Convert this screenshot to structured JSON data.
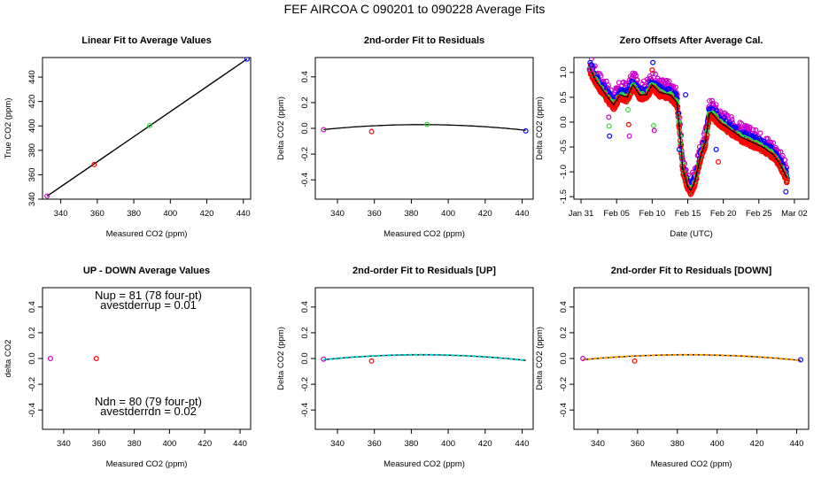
{
  "figure": {
    "title": "FEF   AIRCOA C   090201 to 090228   Average Fits"
  },
  "chart_data": [
    {
      "id": "p1",
      "type": "scatter",
      "title": "Linear Fit to Average Values",
      "xlabel": "Measured CO2 (ppm)",
      "ylabel": "True CO2 (ppm)",
      "xlim": [
        330,
        444
      ],
      "ylim": [
        340,
        456
      ],
      "xticks": [
        {
          "v": 340,
          "label": "340"
        },
        {
          "v": 360,
          "label": "360"
        },
        {
          "v": 380,
          "label": "380"
        },
        {
          "v": 400,
          "label": "400"
        },
        {
          "v": 420,
          "label": "420"
        },
        {
          "v": 440,
          "label": "440"
        }
      ],
      "yticks": [
        {
          "v": 340,
          "label": "340"
        },
        {
          "v": 360,
          "label": "360"
        },
        {
          "v": 380,
          "label": "380"
        },
        {
          "v": 400,
          "label": "400"
        },
        {
          "v": 420,
          "label": "420"
        },
        {
          "v": 440,
          "label": "440"
        }
      ],
      "series": [
        {
          "color": "#cc00cc",
          "points": [
            [
              332.5,
              342.5
            ]
          ]
        },
        {
          "color": "#ff0000",
          "points": [
            [
              358.3,
              368.4
            ]
          ]
        },
        {
          "color": "#33dd33",
          "points": [
            [
              388.7,
              400.3
            ]
          ]
        },
        {
          "color": "#0000ff",
          "points": [
            [
              442.0,
              454.8
            ]
          ]
        }
      ],
      "lines": [
        {
          "color": "#000000",
          "points": [
            [
              332.5,
              342.5
            ],
            [
              442.0,
              454.8
            ]
          ]
        }
      ]
    },
    {
      "id": "p2",
      "type": "scatter",
      "title": "2nd-order Fit to Residuals",
      "xlabel": "Measured CO2 (ppm)",
      "ylabel": "Delta CO2 (ppm)",
      "xlim": [
        328,
        446
      ],
      "ylim": [
        -0.55,
        0.55
      ],
      "xticks": [
        {
          "v": 340,
          "label": "340"
        },
        {
          "v": 360,
          "label": "360"
        },
        {
          "v": 380,
          "label": "380"
        },
        {
          "v": 400,
          "label": "400"
        },
        {
          "v": 420,
          "label": "420"
        },
        {
          "v": 440,
          "label": "440"
        }
      ],
      "yticks": [
        {
          "v": -0.4,
          "label": "-0.4"
        },
        {
          "v": -0.2,
          "label": "-0.2"
        },
        {
          "v": 0.0,
          "label": "0.0"
        },
        {
          "v": 0.2,
          "label": "0.2"
        },
        {
          "v": 0.4,
          "label": "0.4"
        }
      ],
      "series": [
        {
          "color": "#cc00cc",
          "points": [
            [
              332.5,
              -0.01
            ]
          ]
        },
        {
          "color": "#ff0000",
          "points": [
            [
              358.5,
              -0.025
            ]
          ]
        },
        {
          "color": "#33dd33",
          "points": [
            [
              388.5,
              0.03
            ]
          ]
        },
        {
          "color": "#0000ff",
          "points": [
            [
              442.0,
              -0.02
            ]
          ]
        }
      ],
      "curves": [
        {
          "color": "#000000",
          "dashed": false,
          "x": [
            332.5,
            442.0
          ],
          "coef": [
            -1.37e-05,
            0.01056,
            -2.006
          ]
        }
      ]
    },
    {
      "id": "p3",
      "type": "scatter",
      "title": "Zero Offsets After Average Cal.",
      "xlabel": "Date (UTC)",
      "ylabel": "Delta CO2 (ppm)",
      "xlim": [
        -1,
        32
      ],
      "ylim": [
        -1.55,
        1.3
      ],
      "xticks": [
        {
          "v": 0,
          "label": "Jan 31"
        },
        {
          "v": 5,
          "label": "Feb 05"
        },
        {
          "v": 10,
          "label": "Feb 10"
        },
        {
          "v": 15,
          "label": "Feb 15"
        },
        {
          "v": 20,
          "label": "Feb 20"
        },
        {
          "v": 25,
          "label": "Feb 25"
        },
        {
          "v": 30,
          "label": "Mar 02"
        }
      ],
      "yticks": [
        {
          "v": -1.5,
          "label": "-1.5"
        },
        {
          "v": -1.0,
          "label": "-1.0"
        },
        {
          "v": -0.5,
          "label": "-0.5"
        },
        {
          "v": 0.0,
          "label": "0.0"
        },
        {
          "v": 0.5,
          "label": "0.5"
        },
        {
          "v": 1.0,
          "label": "1.0"
        }
      ],
      "timeseries": {
        "t0": 1.2,
        "t1": 29.0,
        "step": 0.07,
        "trend": [
          [
            1.2,
            1.1
          ],
          [
            2.0,
            0.85
          ],
          [
            3.0,
            0.65
          ],
          [
            4.0,
            0.45
          ],
          [
            4.6,
            0.35
          ],
          [
            5.5,
            0.55
          ],
          [
            6.5,
            0.5
          ],
          [
            7.3,
            0.75
          ],
          [
            8.2,
            0.55
          ],
          [
            9.2,
            0.55
          ],
          [
            10.0,
            0.75
          ],
          [
            11.0,
            0.6
          ],
          [
            12.5,
            0.55
          ],
          [
            13.5,
            0.4
          ],
          [
            14.0,
            -0.4
          ],
          [
            14.3,
            -0.95
          ],
          [
            15.0,
            -1.3
          ],
          [
            15.4,
            -1.38
          ],
          [
            16.0,
            -1.2
          ],
          [
            16.8,
            -0.7
          ],
          [
            17.5,
            -0.4
          ],
          [
            18.0,
            0.15
          ],
          [
            18.3,
            0.2
          ],
          [
            19.5,
            0.0
          ],
          [
            21.0,
            -0.15
          ],
          [
            22.5,
            -0.3
          ],
          [
            24.0,
            -0.4
          ],
          [
            25.5,
            -0.5
          ],
          [
            27.0,
            -0.65
          ],
          [
            28.0,
            -0.85
          ],
          [
            29.0,
            -1.15
          ]
        ],
        "series": [
          {
            "color": "#cc00cc",
            "offset": 0.15,
            "spread": 0.14
          },
          {
            "color": "#0000ff",
            "offset": 0.05,
            "spread": 0.1
          },
          {
            "color": "#33dd33",
            "offset": -0.03,
            "spread": 0.06
          },
          {
            "color": "#ff0000",
            "offset": -0.06,
            "spread": 0.04
          }
        ],
        "line_color": "#000000"
      },
      "extra_points": [
        {
          "color": "#cc00cc",
          "x": 1.3,
          "y": 1.05
        },
        {
          "color": "#ff0000",
          "x": 1.4,
          "y": 1.15
        },
        {
          "color": "#0000ff",
          "x": 1.5,
          "y": 1.15
        },
        {
          "color": "#cc00cc",
          "x": 3.9,
          "y": 0.1
        },
        {
          "color": "#33dd33",
          "x": 3.95,
          "y": -0.08
        },
        {
          "color": "#0000ff",
          "x": 4.0,
          "y": -0.28
        },
        {
          "color": "#33dd33",
          "x": 6.6,
          "y": 0.25
        },
        {
          "color": "#ff0000",
          "x": 6.7,
          "y": -0.05
        },
        {
          "color": "#cc00cc",
          "x": 6.8,
          "y": -0.28
        },
        {
          "color": "#33dd33",
          "x": 10.2,
          "y": -0.07
        },
        {
          "color": "#cc00cc",
          "x": 10.3,
          "y": -0.17
        },
        {
          "color": "#0000ff",
          "x": 10.1,
          "y": 1.2
        },
        {
          "color": "#ff0000",
          "x": 10.0,
          "y": 1.05
        },
        {
          "color": "#0000ff",
          "x": 14.7,
          "y": 0.55
        },
        {
          "color": "#ff0000",
          "x": 19.3,
          "y": -0.8
        },
        {
          "color": "#0000ff",
          "x": 19.0,
          "y": -0.55
        },
        {
          "color": "#0000ff",
          "x": 13.8,
          "y": -0.55
        },
        {
          "color": "#0000ff",
          "x": 28.8,
          "y": -1.4
        }
      ]
    },
    {
      "id": "p4",
      "type": "scatter",
      "title": "UP - DOWN Average Values",
      "xlabel": "Measured CO2 (ppm)",
      "ylabel": "delta CO2",
      "xlim": [
        328,
        446
      ],
      "ylim": [
        -0.55,
        0.55
      ],
      "xticks": [
        {
          "v": 340,
          "label": "340"
        },
        {
          "v": 360,
          "label": "360"
        },
        {
          "v": 380,
          "label": "380"
        },
        {
          "v": 400,
          "label": "400"
        },
        {
          "v": 420,
          "label": "420"
        },
        {
          "v": 440,
          "label": "440"
        }
      ],
      "yticks": [
        {
          "v": -0.4,
          "label": "-0.4"
        },
        {
          "v": -0.2,
          "label": "-0.2"
        },
        {
          "v": 0.0,
          "label": "0.0"
        },
        {
          "v": 0.2,
          "label": "0.2"
        },
        {
          "v": 0.4,
          "label": "0.4"
        }
      ],
      "series": [
        {
          "color": "#cc00cc",
          "points": [
            [
              332.5,
              0.0
            ]
          ]
        },
        {
          "color": "#ff0000",
          "points": [
            [
              358.5,
              0.0
            ]
          ]
        }
      ],
      "annotations": [
        {
          "text": "Nup = 81 (78 four-pt)",
          "x": 388,
          "y": 0.46
        },
        {
          "text": "avestderrup =  0.01",
          "x": 388,
          "y": 0.385
        },
        {
          "text": "Ndn = 80 (79 four-pt)",
          "x": 388,
          "y": -0.365
        },
        {
          "text": "avestderrdn =  0.02",
          "x": 388,
          "y": -0.44
        }
      ]
    },
    {
      "id": "p5",
      "type": "scatter",
      "title": "2nd-order Fit to Residuals [UP]",
      "xlabel": "Measured CO2 (ppm)",
      "ylabel": "Delta CO2 (ppm)",
      "xlim": [
        328,
        446
      ],
      "ylim": [
        -0.55,
        0.55
      ],
      "xticks": [
        {
          "v": 340,
          "label": "340"
        },
        {
          "v": 360,
          "label": "360"
        },
        {
          "v": 380,
          "label": "380"
        },
        {
          "v": 400,
          "label": "400"
        },
        {
          "v": 420,
          "label": "420"
        },
        {
          "v": 440,
          "label": "440"
        }
      ],
      "yticks": [
        {
          "v": -0.4,
          "label": "-0.4"
        },
        {
          "v": -0.2,
          "label": "-0.2"
        },
        {
          "v": 0.0,
          "label": "0.0"
        },
        {
          "v": 0.2,
          "label": "0.2"
        },
        {
          "v": 0.4,
          "label": "0.4"
        }
      ],
      "series": [
        {
          "color": "#cc00cc",
          "points": [
            [
              332.5,
              -0.005
            ]
          ]
        },
        {
          "color": "#ff0000",
          "points": [
            [
              358.5,
              -0.02
            ]
          ]
        }
      ],
      "curves": [
        {
          "color": "#000000",
          "dashed": false,
          "x": [
            332.5,
            442.0
          ],
          "coef": [
            -1.37e-05,
            0.01056,
            -2.006
          ]
        },
        {
          "color": "#00cccc",
          "dashed": true,
          "x": [
            332.5,
            442.0
          ],
          "coef": [
            -1.37e-05,
            0.01056,
            -2.006
          ]
        }
      ]
    },
    {
      "id": "p6",
      "type": "scatter",
      "title": "2nd-order Fit to Residuals [DOWN]",
      "xlabel": "Measured CO2 (ppm)",
      "ylabel": "Delta CO2 (ppm)",
      "xlim": [
        328,
        446
      ],
      "ylim": [
        -0.55,
        0.55
      ],
      "xticks": [
        {
          "v": 340,
          "label": "340"
        },
        {
          "v": 360,
          "label": "360"
        },
        {
          "v": 380,
          "label": "380"
        },
        {
          "v": 400,
          "label": "400"
        },
        {
          "v": 420,
          "label": "420"
        },
        {
          "v": 440,
          "label": "440"
        }
      ],
      "yticks": [
        {
          "v": -0.4,
          "label": "-0.4"
        },
        {
          "v": -0.2,
          "label": "-0.2"
        },
        {
          "v": 0.0,
          "label": "0.0"
        },
        {
          "v": 0.2,
          "label": "0.2"
        },
        {
          "v": 0.4,
          "label": "0.4"
        }
      ],
      "series": [
        {
          "color": "#cc00cc",
          "points": [
            [
              332.5,
              0.0
            ]
          ]
        },
        {
          "color": "#ff0000",
          "points": [
            [
              358.5,
              -0.02
            ]
          ]
        },
        {
          "color": "#0000ff",
          "points": [
            [
              442.0,
              -0.01
            ]
          ]
        }
      ],
      "curves": [
        {
          "color": "#000000",
          "dashed": false,
          "x": [
            332.5,
            442.0
          ],
          "coef": [
            -1.37e-05,
            0.01056,
            -2.006
          ]
        },
        {
          "color": "#ff9900",
          "dashed": true,
          "x": [
            332.5,
            442.0
          ],
          "coef": [
            -1.37e-05,
            0.01056,
            -2.006
          ]
        }
      ]
    }
  ]
}
